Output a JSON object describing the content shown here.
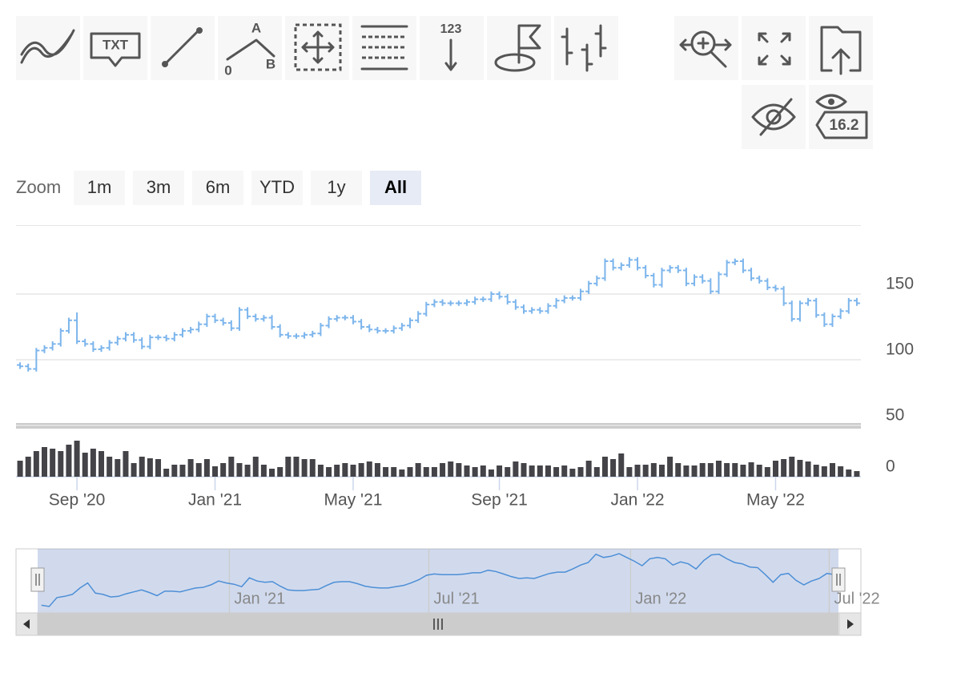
{
  "toolbar": {
    "labels": [
      "TXT",
      "A",
      "B",
      "0",
      "123",
      "16.2"
    ]
  },
  "zoom": {
    "label": "Zoom",
    "buttons": [
      "1m",
      "3m",
      "6m",
      "YTD",
      "1y",
      "All"
    ],
    "selected": "All"
  },
  "chart_data": {
    "type": "ohlc",
    "categories": [
      null,
      null,
      null,
      null,
      null,
      null,
      null,
      "Sep '20",
      null,
      null,
      null,
      null,
      null,
      null,
      null,
      null,
      null,
      null,
      null,
      null,
      null,
      null,
      null,
      null,
      "Jan '21",
      null,
      null,
      null,
      null,
      null,
      null,
      null,
      null,
      null,
      null,
      null,
      null,
      null,
      null,
      null,
      null,
      "May '21",
      null,
      null,
      null,
      null,
      null,
      null,
      null,
      null,
      null,
      null,
      null,
      null,
      null,
      null,
      null,
      null,
      null,
      "Sep '21",
      null,
      null,
      null,
      null,
      null,
      null,
      null,
      null,
      null,
      null,
      null,
      null,
      null,
      null,
      null,
      null,
      "Jan '22",
      null,
      null,
      null,
      null,
      null,
      null,
      null,
      null,
      null,
      null,
      null,
      null,
      null,
      null,
      null,
      null,
      "May '22",
      null,
      null,
      null,
      null,
      null,
      null,
      null,
      null,
      null,
      null
    ],
    "ohlc": {
      "color": "#7cb5ec",
      "open": [
        96,
        95,
        93,
        107,
        109,
        112,
        122,
        130,
        114,
        112,
        108,
        109,
        113,
        116,
        119,
        115,
        110,
        117,
        117,
        116,
        119,
        122,
        123,
        127,
        133,
        130,
        128,
        124,
        138,
        133,
        131,
        132,
        125,
        119,
        118,
        118,
        119,
        120,
        126,
        131,
        132,
        132,
        129,
        125,
        123,
        122,
        122,
        124,
        126,
        130,
        135,
        142,
        144,
        143,
        143,
        143,
        144,
        146,
        146,
        150,
        148,
        144,
        140,
        137,
        138,
        137,
        141,
        145,
        147,
        147,
        152,
        158,
        162,
        175,
        170,
        172,
        176,
        170,
        164,
        157,
        168,
        170,
        168,
        158,
        163,
        160,
        152,
        165,
        174,
        175,
        168,
        162,
        160,
        155,
        154,
        143,
        131,
        143,
        145,
        134,
        127,
        133,
        137,
        145
      ],
      "high": [
        98,
        97,
        109,
        111,
        114,
        124,
        132,
        136,
        116,
        114,
        111,
        115,
        118,
        121,
        121,
        117,
        119,
        119,
        119,
        121,
        124,
        125,
        129,
        135,
        135,
        132,
        130,
        140,
        140,
        135,
        134,
        134,
        127,
        121,
        120,
        121,
        122,
        128,
        133,
        134,
        134,
        134,
        131,
        127,
        125,
        124,
        126,
        128,
        132,
        137,
        144,
        146,
        146,
        145,
        145,
        146,
        148,
        148,
        152,
        152,
        150,
        146,
        142,
        140,
        140,
        143,
        147,
        149,
        149,
        154,
        160,
        164,
        177,
        177,
        174,
        178,
        178,
        172,
        166,
        170,
        172,
        172,
        170,
        165,
        165,
        162,
        167,
        176,
        177,
        177,
        170,
        164,
        162,
        157,
        156,
        145,
        145,
        147,
        147,
        136,
        135,
        139,
        147,
        147
      ],
      "low": [
        93,
        91,
        91,
        105,
        107,
        110,
        120,
        112,
        110,
        106,
        106,
        107,
        111,
        114,
        113,
        108,
        108,
        115,
        114,
        114,
        117,
        120,
        121,
        125,
        128,
        126,
        122,
        122,
        131,
        129,
        129,
        123,
        117,
        116,
        116,
        116,
        117,
        118,
        124,
        129,
        130,
        127,
        123,
        121,
        120,
        120,
        120,
        122,
        124,
        128,
        133,
        140,
        141,
        141,
        141,
        141,
        142,
        144,
        144,
        146,
        142,
        138,
        135,
        135,
        135,
        135,
        139,
        143,
        145,
        145,
        150,
        156,
        160,
        168,
        168,
        170,
        168,
        162,
        155,
        155,
        166,
        166,
        156,
        156,
        158,
        150,
        150,
        163,
        172,
        166,
        160,
        158,
        153,
        152,
        141,
        129,
        129,
        141,
        132,
        125,
        125,
        131,
        135,
        141
      ],
      "close": [
        95,
        93,
        107,
        109,
        112,
        122,
        130,
        114,
        112,
        108,
        109,
        113,
        116,
        119,
        115,
        110,
        117,
        117,
        116,
        119,
        122,
        123,
        127,
        133,
        130,
        128,
        124,
        138,
        133,
        131,
        132,
        125,
        119,
        118,
        118,
        119,
        120,
        126,
        131,
        132,
        132,
        129,
        125,
        123,
        122,
        122,
        124,
        126,
        130,
        135,
        142,
        144,
        143,
        143,
        143,
        144,
        146,
        146,
        150,
        148,
        144,
        140,
        137,
        138,
        137,
        141,
        145,
        147,
        147,
        152,
        158,
        162,
        175,
        170,
        172,
        176,
        170,
        164,
        157,
        168,
        170,
        168,
        158,
        163,
        160,
        152,
        165,
        174,
        175,
        168,
        162,
        160,
        155,
        154,
        143,
        131,
        143,
        145,
        134,
        127,
        133,
        137,
        145,
        143
      ]
    },
    "ylim": [
      50,
      200
    ],
    "yticks": [
      50,
      100,
      150
    ],
    "grid": true,
    "volume": {
      "color": "#434348",
      "values": [
        20,
        25,
        32,
        37,
        35,
        32,
        40,
        45,
        30,
        35,
        32,
        25,
        22,
        32,
        17,
        25,
        23,
        22,
        10,
        15,
        15,
        22,
        17,
        22,
        13,
        17,
        25,
        17,
        15,
        25,
        15,
        10,
        12,
        25,
        25,
        22,
        22,
        15,
        12,
        15,
        17,
        15,
        17,
        19,
        17,
        12,
        12,
        9,
        12,
        17,
        12,
        12,
        17,
        19,
        17,
        14,
        12,
        14,
        9,
        14,
        12,
        19,
        17,
        14,
        14,
        14,
        12,
        14,
        10,
        12,
        20,
        12,
        25,
        22,
        29,
        12,
        15,
        15,
        17,
        15,
        25,
        17,
        14,
        14,
        17,
        17,
        20,
        17,
        17,
        15,
        18,
        15,
        12,
        20,
        22,
        25,
        21,
        19,
        15,
        13,
        17,
        13,
        9,
        7
      ],
      "ylim": [
        0,
        60
      ],
      "yticks": [
        0
      ]
    },
    "navigator": {
      "labels": [
        "Jan '21",
        "Jul '21",
        "Jan '22",
        "Jul '22"
      ]
    }
  }
}
